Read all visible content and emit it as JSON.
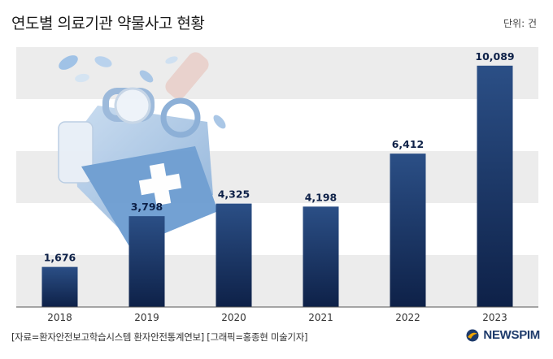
{
  "header": {
    "title": "연도별 의료기관 약물사고 현황",
    "unit": "단위: 건"
  },
  "footer": {
    "source": "[자료=환자안전보고학습시스템 환자안전통계연보] [그래픽=홍종현 미술기자]",
    "logo_text": "NEWSPIM"
  },
  "colors": {
    "bar_top": "#2b4f86",
    "bar_bottom": "#0e2148",
    "band": "#ececec",
    "value_label": "#0e2148"
  },
  "chart_data": {
    "type": "bar",
    "title": "연도별 의료기관 약물사고 현황",
    "categories": [
      "2018",
      "2019",
      "2020",
      "2021",
      "2022",
      "2023"
    ],
    "values": [
      1676,
      3798,
      4325,
      4198,
      6412,
      10089
    ],
    "value_labels": [
      "1,676",
      "3,798",
      "4,325",
      "4,198",
      "6,412",
      "10,089"
    ],
    "ylim": [
      0,
      11000
    ],
    "grid": "horizontal bands",
    "legend": "none"
  }
}
